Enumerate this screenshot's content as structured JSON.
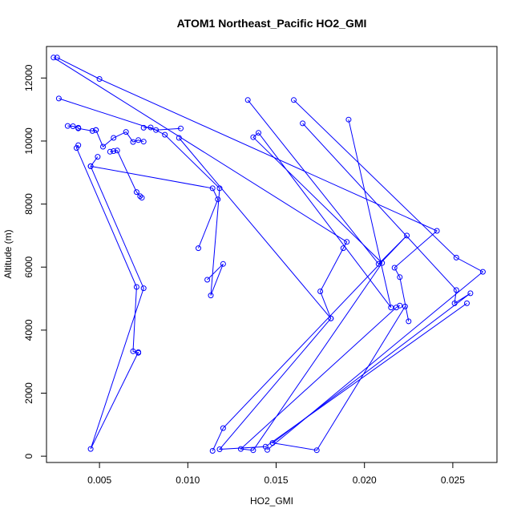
{
  "chart_data": {
    "type": "line",
    "title": "ATOM1 Northeast_Pacific HO2_GMI",
    "xlabel": "HO2_GMI",
    "ylabel": "Altitude (m)",
    "xlim": [
      0.002,
      0.0275
    ],
    "ylim": [
      -200,
      13000
    ],
    "x_ticks": [
      0.005,
      0.01,
      0.015,
      0.02,
      0.025
    ],
    "x_tick_labels": [
      "0.005",
      "0.010",
      "0.015",
      "0.020",
      "0.025"
    ],
    "y_ticks": [
      0,
      2000,
      4000,
      6000,
      8000,
      10000,
      12000
    ],
    "y_tick_labels": [
      "0",
      "2000",
      "4000",
      "6000",
      "8000",
      "10000",
      "12000"
    ],
    "grid": false,
    "legend": false,
    "color": "#0000ff",
    "series": [
      {
        "marker": "open-circle",
        "x": [
          0.0027,
          0.0082,
          0.0096
        ],
        "y": [
          11350,
          10350,
          10400
        ]
      },
      {
        "marker": "open-circle",
        "x": [
          0.0032,
          0.0035,
          0.0038,
          0.0038,
          0.0046,
          0.0048
        ],
        "y": [
          10480,
          10470,
          10420,
          10400,
          10320,
          10350
        ]
      },
      {
        "marker": "open-circle",
        "x": [
          0.0048,
          0.0052,
          0.0058,
          0.0065,
          0.0069,
          0.0072,
          0.0075
        ],
        "y": [
          10350,
          9820,
          10100,
          10290,
          9970,
          10030,
          9980
        ]
      },
      {
        "marker": "open-circle",
        "x": [
          0.0075,
          0.0079,
          0.0087,
          0.0118,
          0.0113,
          0.012,
          0.0111
        ],
        "y": [
          10420,
          10430,
          10200,
          8500,
          5100,
          6100,
          5600
        ]
      },
      {
        "marker": "open-circle",
        "x": [
          0.0058,
          0.0056,
          0.006,
          0.0071,
          0.0073,
          0.0074
        ],
        "y": [
          9680,
          9660,
          9700,
          8380,
          8250,
          8200
        ]
      },
      {
        "marker": "open-circle",
        "x": [
          0.0038,
          0.0037,
          0.0071,
          0.0069,
          0.0072,
          0.0072,
          0.0045,
          0.0075,
          0.0045,
          0.0049
        ],
        "y": [
          9870,
          9780,
          5370,
          3330,
          3280,
          3300,
          230,
          5330,
          9200,
          9500
        ]
      },
      {
        "marker": "open-circle",
        "x": [
          0.0045,
          0.0114,
          0.0117,
          0.0106
        ],
        "y": [
          9200,
          8500,
          8150,
          6600
        ]
      },
      {
        "marker": "open-circle",
        "x": [
          0.0026,
          0.005,
          0.0241,
          0.0217,
          0.022,
          0.0225
        ],
        "y": [
          12650,
          11970,
          7150,
          5980,
          5680,
          4280
        ]
      },
      {
        "marker": "open-circle",
        "x": [
          0.0024,
          0.019,
          0.0188,
          0.0175,
          0.0181
        ],
        "y": [
          12650,
          6800,
          6600,
          5230,
          4370
        ]
      },
      {
        "marker": "open-circle",
        "x": [
          0.0134,
          0.0208,
          0.0224,
          0.012,
          0.0114
        ],
        "y": [
          11300,
          6100,
          7000,
          890,
          170
        ]
      },
      {
        "marker": "open-circle",
        "x": [
          0.016,
          0.0252,
          0.0267,
          0.0145
        ],
        "y": [
          11300,
          6300,
          5850,
          200
        ]
      },
      {
        "marker": "open-circle",
        "x": [
          0.0165,
          0.0252,
          0.0251,
          0.026,
          0.0148,
          0.0173,
          0.0223
        ],
        "y": [
          10560,
          5270,
          4850,
          5170,
          420,
          190,
          4750
        ]
      },
      {
        "marker": "open-circle",
        "x": [
          0.0191,
          0.0215,
          0.014,
          0.0137,
          0.021,
          0.0137,
          0.013,
          0.0218,
          0.022
        ],
        "y": [
          10680,
          4720,
          10260,
          10120,
          6130,
          190,
          230,
          4720,
          4780
        ]
      },
      {
        "marker": "open-circle",
        "x": [
          0.0095,
          0.0181,
          0.0118,
          0.0144,
          0.0258
        ],
        "y": [
          10100,
          4370,
          220,
          300,
          4850
        ]
      }
    ]
  }
}
